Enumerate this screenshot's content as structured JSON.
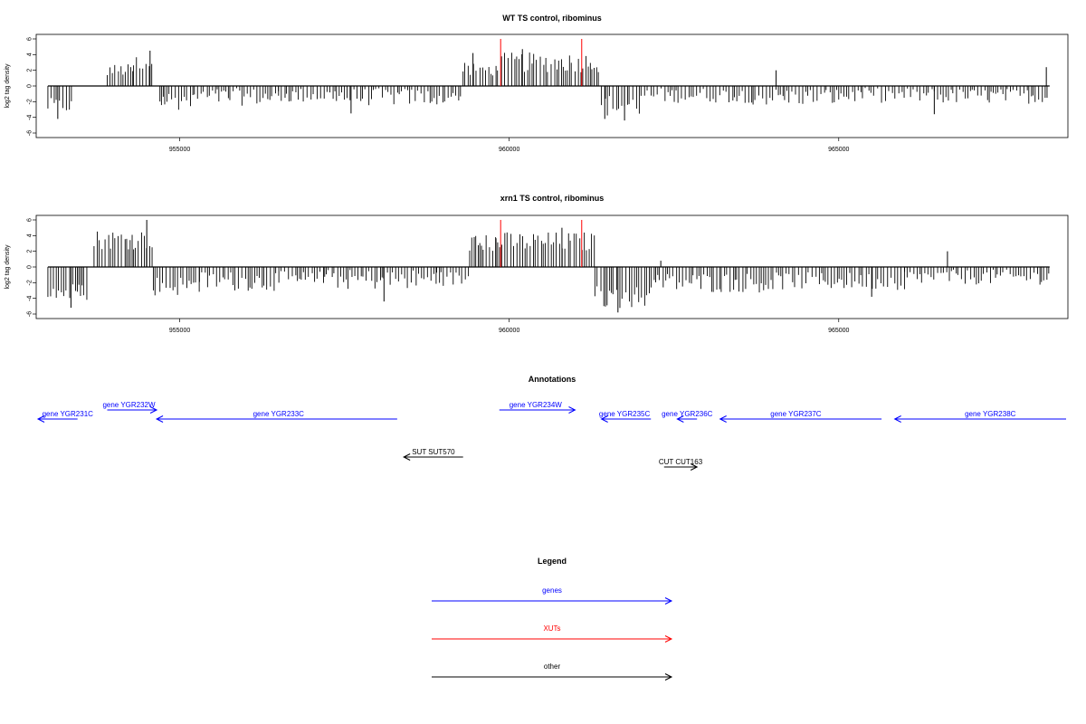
{
  "chart_data": [
    {
      "type": "bar",
      "title": "WT TS control, ribominus",
      "ylabel": "log2 tag density",
      "xlabel": "",
      "xlim": [
        952850,
        968450
      ],
      "ylim": [
        -6,
        6
      ],
      "x_ticks": [
        955000,
        960000,
        965000
      ],
      "x_tick_labels": [
        "955000",
        "960000",
        "965000"
      ],
      "y_ticks": [
        -6,
        -4,
        -2,
        0,
        2,
        4,
        6
      ],
      "y_tick_labels": [
        "-6",
        "-4",
        "-2",
        "0",
        "2",
        "4",
        "6"
      ],
      "grid": false,
      "series": [
        {
          "color": "#000000",
          "segments": [
            [
              953000,
              953400,
              -2.5,
              0.6
            ],
            [
              953900,
              954300,
              2.0,
              0.5
            ],
            [
              954300,
              954600,
              3.0,
              0.6
            ],
            [
              954700,
              955200,
              -1.8,
              0.8
            ],
            [
              955200,
              956500,
              -1.4,
              0.7
            ],
            [
              956500,
              957500,
              -1.2,
              0.6
            ],
            [
              957500,
              958800,
              -1.4,
              0.7
            ],
            [
              958800,
              959300,
              -1.5,
              0.6
            ],
            [
              959300,
              959800,
              2.0,
              0.6
            ],
            [
              959800,
              961200,
              3.0,
              0.8
            ],
            [
              961200,
              961400,
              2.5,
              0.5
            ],
            [
              961400,
              962000,
              -2.5,
              0.9
            ],
            [
              962000,
              963700,
              -1.2,
              0.6
            ],
            [
              963700,
              965000,
              -1.4,
              0.7
            ],
            [
              965000,
              966500,
              -1.2,
              0.6
            ],
            [
              966500,
              968200,
              -1.3,
              0.6
            ]
          ]
        }
      ],
      "highlights": [
        {
          "x": 959870,
          "color": "#ff0000"
        },
        {
          "x": 961100,
          "color": "#ff0000"
        }
      ],
      "peaks": [
        [
          954550,
          4.5
        ],
        [
          964050,
          2.0
        ],
        [
          968150,
          2.4
        ],
        [
          953150,
          -4.2
        ],
        [
          957600,
          -3.5
        ],
        [
          961450,
          -4.2
        ],
        [
          961750,
          -4.4
        ],
        [
          966450,
          -3.6
        ],
        [
          959450,
          4.2
        ],
        [
          960200,
          4.7
        ]
      ]
    },
    {
      "type": "bar",
      "title": "xrn1 TS control, ribominus",
      "ylabel": "log2 tag density",
      "xlabel": "",
      "xlim": [
        952850,
        968450
      ],
      "ylim": [
        -6,
        6
      ],
      "x_ticks": [
        955000,
        960000,
        965000
      ],
      "x_tick_labels": [
        "955000",
        "960000",
        "965000"
      ],
      "y_ticks": [
        -6,
        -4,
        -2,
        0,
        2,
        4,
        6
      ],
      "y_tick_labels": [
        "-6",
        "-4",
        "-2",
        "0",
        "2",
        "4",
        "6"
      ],
      "grid": false,
      "series": [
        {
          "color": "#000000",
          "segments": [
            [
              953000,
              953600,
              -3.2,
              0.7
            ],
            [
              953700,
              954600,
              3.5,
              0.8
            ],
            [
              954600,
              955300,
              -2.4,
              0.8
            ],
            [
              955300,
              957200,
              -1.8,
              0.8
            ],
            [
              957200,
              958900,
              -1.6,
              0.8
            ],
            [
              958900,
              959400,
              -1.5,
              0.6
            ],
            [
              959400,
              959800,
              3.0,
              0.7
            ],
            [
              959800,
              961300,
              3.2,
              0.8
            ],
            [
              961300,
              962200,
              -3.8,
              0.9
            ],
            [
              962200,
              964000,
              -2.0,
              0.8
            ],
            [
              964000,
              966000,
              -1.8,
              0.7
            ],
            [
              966000,
              968200,
              -1.3,
              0.6
            ]
          ]
        }
      ],
      "highlights": [
        {
          "x": 959870,
          "color": "#ff0000"
        },
        {
          "x": 961100,
          "color": "#ff0000"
        }
      ],
      "peaks": [
        [
          954500,
          6.0
        ],
        [
          953350,
          -5.2
        ],
        [
          958100,
          -4.4
        ],
        [
          961650,
          -5.8
        ],
        [
          965500,
          -3.8
        ],
        [
          966650,
          2.0
        ],
        [
          962300,
          0.8
        ],
        [
          960800,
          5.0
        ]
      ]
    }
  ],
  "annotations": {
    "title": "Annotations",
    "items": [
      {
        "label": "gene YGR231C",
        "from": 953450,
        "to": 952850,
        "color": "#0000ff",
        "row": 0,
        "label_pos": 953300
      },
      {
        "label": "gene YGR232W",
        "from": 953900,
        "to": 954650,
        "color": "#0000ff",
        "row": -1,
        "label_pos": 954230
      },
      {
        "label": "gene YGR233C",
        "from": 958300,
        "to": 954650,
        "color": "#0000ff",
        "row": 0,
        "label_pos": 956500
      },
      {
        "label": "gene YGR234W",
        "from": 959850,
        "to": 961000,
        "color": "#0000ff",
        "row": -1,
        "label_pos": 960400
      },
      {
        "label": "gene YGR235C",
        "from": 962150,
        "to": 961400,
        "color": "#0000ff",
        "row": 0,
        "label_pos": 961750
      },
      {
        "label": "gene YGR236C",
        "from": 962850,
        "to": 962550,
        "color": "#0000ff",
        "row": 0,
        "label_pos": 962700
      },
      {
        "label": "gene YGR237C",
        "from": 965650,
        "to": 963200,
        "color": "#0000ff",
        "row": 0,
        "label_pos": 964350
      },
      {
        "label": "gene YGR238C",
        "from": 968450,
        "to": 965850,
        "color": "#0000ff",
        "row": 0,
        "label_pos": 967300
      },
      {
        "label": "SUT SUT570",
        "from": 959300,
        "to": 958400,
        "color": "#000000",
        "row": 2,
        "label_pos": 958850
      },
      {
        "label": "CUT CUT163",
        "from": 962350,
        "to": 962850,
        "color": "#000000",
        "row": 3,
        "label_pos": 962600
      }
    ]
  },
  "legend": {
    "title": "Legend",
    "items": [
      {
        "label": "genes",
        "color": "#0000ff"
      },
      {
        "label": "XUTs",
        "color": "#ff0000"
      },
      {
        "label": "other",
        "color": "#000000"
      }
    ]
  }
}
